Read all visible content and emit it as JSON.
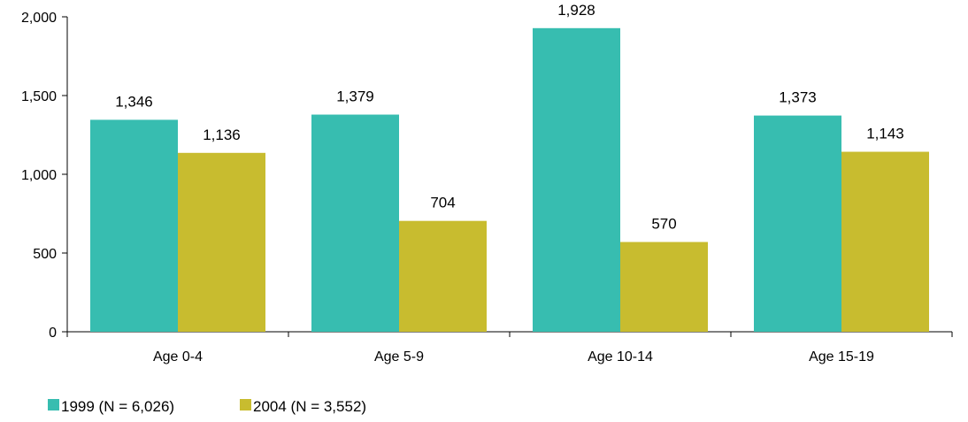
{
  "chart_data": {
    "type": "bar",
    "title": "",
    "xlabel": "",
    "ylabel": "",
    "categories": [
      "Age 0-4",
      "Age 5-9",
      "Age 10-14",
      "Age 15-19"
    ],
    "series": [
      {
        "name": "1999 (N = 6,026)",
        "color": "#37BDB0",
        "values": [
          1346,
          1379,
          1928,
          1373
        ]
      },
      {
        "name": "2004 (N = 3,552)",
        "color": "#C8BC2F",
        "values": [
          1136,
          704,
          570,
          1143
        ]
      }
    ],
    "ylim": [
      0,
      2000
    ],
    "yticks": [
      0,
      500,
      1000,
      1500,
      2000
    ],
    "ytick_labels": [
      "0",
      "500",
      "1,000",
      "1,500",
      "2,000"
    ],
    "data_labels": [
      [
        "1,346",
        "1,379",
        "1,928",
        "1,373"
      ],
      [
        "1,136",
        "704",
        "570",
        "1,143"
      ]
    ],
    "grid": false,
    "legend_position": "bottom-left"
  }
}
